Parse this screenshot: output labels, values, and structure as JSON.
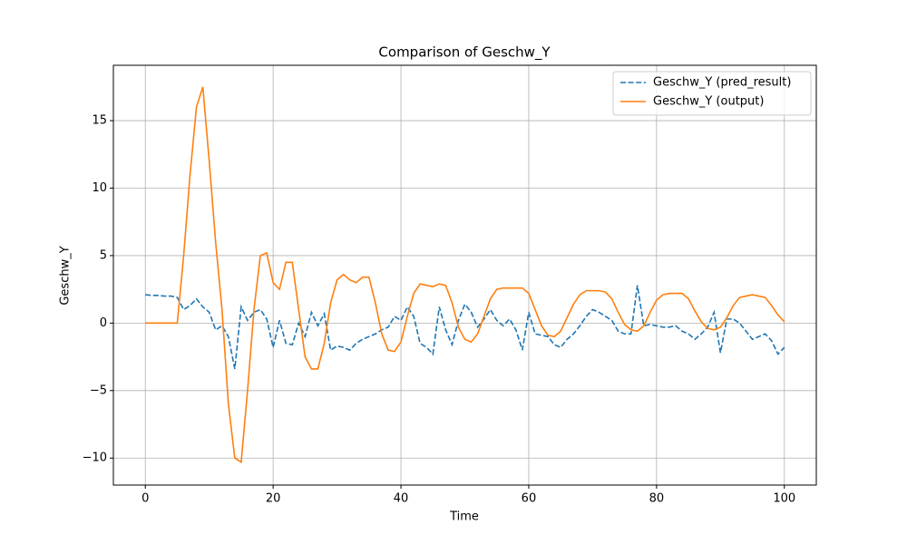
{
  "chart_data": {
    "type": "line",
    "title": "Comparison of Geschw_Y",
    "xlabel": "Time",
    "ylabel": "Geschw_Y",
    "x": [
      0,
      1,
      2,
      3,
      4,
      5,
      6,
      7,
      8,
      9,
      10,
      11,
      12,
      13,
      14,
      15,
      16,
      17,
      18,
      19,
      20,
      21,
      22,
      23,
      24,
      25,
      26,
      27,
      28,
      29,
      30,
      31,
      32,
      33,
      34,
      35,
      36,
      37,
      38,
      39,
      40,
      41,
      42,
      43,
      44,
      45,
      46,
      47,
      48,
      49,
      50,
      51,
      52,
      53,
      54,
      55,
      56,
      57,
      58,
      59,
      60,
      61,
      62,
      63,
      64,
      65,
      66,
      67,
      68,
      69,
      70,
      71,
      72,
      73,
      74,
      75,
      76,
      77,
      78,
      79,
      80,
      81,
      82,
      83,
      84,
      85,
      86,
      87,
      88,
      89,
      90,
      91,
      92,
      93,
      94,
      95,
      96,
      97,
      98,
      99,
      100
    ],
    "series": [
      {
        "name": "Geschw_Y (pred_result)",
        "color": "#1f77b4",
        "linestyle": "dashed",
        "values": [
          2.1,
          2.05,
          2.05,
          2.0,
          2.0,
          1.9,
          1.0,
          1.3,
          1.8,
          1.2,
          0.8,
          -0.5,
          -0.2,
          -1,
          -3.4,
          1.2,
          0.2,
          0.8,
          1,
          0.3,
          -1.8,
          0.2,
          -1.5,
          -1.6,
          0,
          -1,
          0.8,
          -0.2,
          0.7,
          -2,
          -1.7,
          -1.8,
          -2,
          -1.5,
          -1.2,
          -1,
          -0.8,
          -0.5,
          -0.3,
          0.5,
          0.2,
          1.2,
          0.5,
          -1.5,
          -1.8,
          -2.3,
          1.2,
          -0.5,
          -1.6,
          0.2,
          1.4,
          0.8,
          -0.3,
          0.3,
          1,
          0.2,
          -0.2,
          0.3,
          -0.5,
          -2,
          0.8,
          -0.8,
          -0.9,
          -1,
          -1.6,
          -1.8,
          -1.2,
          -0.8,
          -0.2,
          0.5,
          1.0,
          0.8,
          0.5,
          0.2,
          -0.6,
          -0.8,
          -0.8,
          2.8,
          -0.2,
          -0.1,
          -0.2,
          -0.3,
          -0.3,
          -0.2,
          -0.6,
          -0.8,
          -1.2,
          -0.8,
          -0.3,
          0.8,
          -2.2,
          0.3,
          0.3,
          0,
          -0.6,
          -1.2,
          -1.0,
          -0.8,
          -1.3,
          -2.3,
          -1.8
        ]
      },
      {
        "name": "Geschw_Y (output)",
        "color": "#ff7f0e",
        "linestyle": "solid",
        "values": [
          0,
          0,
          0,
          0,
          0,
          0,
          5,
          11,
          16,
          17.5,
          12,
          6,
          1,
          -6,
          -10,
          -10.3,
          -5,
          1,
          5,
          5.2,
          3,
          2.5,
          4.5,
          4.5,
          1,
          -2.5,
          -3.4,
          -3.4,
          -1.5,
          1.5,
          3.2,
          3.6,
          3.2,
          3.0,
          3.4,
          3.4,
          1.5,
          -0.8,
          -2,
          -2.1,
          -1.4,
          0.5,
          2.2,
          2.9,
          2.8,
          2.7,
          2.9,
          2.8,
          1.5,
          -0.3,
          -1.2,
          -1.4,
          -0.8,
          0.5,
          1.8,
          2.5,
          2.6,
          2.6,
          2.6,
          2.6,
          2.2,
          1,
          -0.2,
          -0.9,
          -1,
          -0.6,
          0.4,
          1.4,
          2.1,
          2.4,
          2.4,
          2.4,
          2.3,
          1.8,
          0.8,
          -0.1,
          -0.5,
          -0.6,
          -0.2,
          0.8,
          1.7,
          2.1,
          2.2,
          2.2,
          2.2,
          1.8,
          0.9,
          0.1,
          -0.4,
          -0.5,
          -0.3,
          0.4,
          1.3,
          1.9,
          2.0,
          2.1,
          2.0,
          1.9,
          1.3,
          0.6,
          0.1
        ]
      }
    ],
    "xlim": [
      -5,
      105
    ],
    "xticks": [
      0,
      20,
      40,
      60,
      80,
      100
    ],
    "ylim": [
      -12,
      19.1
    ],
    "yticks": [
      {
        "value": -10,
        "label": "−10"
      },
      {
        "value": -5,
        "label": "−5"
      },
      0,
      5,
      10,
      15
    ],
    "grid": true,
    "legend": "upper right"
  }
}
